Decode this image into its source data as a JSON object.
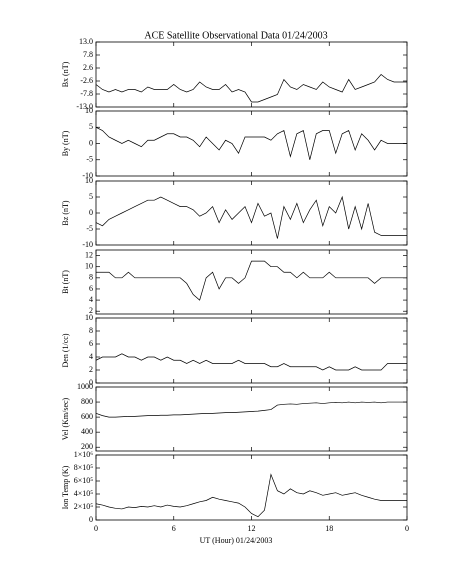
{
  "chart_data": [
    {
      "type": "line",
      "title": "ACE Satellite Observational Data   01/24/2003",
      "ylabel": "Bx (nT)",
      "color": "#000000",
      "x": [
        0,
        0.5,
        1,
        1.5,
        2,
        2.5,
        3,
        3.5,
        4,
        4.5,
        5,
        5.5,
        6,
        6.5,
        7,
        7.5,
        8,
        8.5,
        9,
        9.5,
        10,
        10.5,
        11,
        11.5,
        12,
        12.5,
        13,
        13.5,
        14,
        14.5,
        15,
        15.5,
        16,
        16.5,
        17,
        17.5,
        18,
        18.5,
        19,
        19.5,
        20,
        20.5,
        21,
        21.5,
        22,
        22.5,
        23,
        23.5,
        24
      ],
      "values": [
        -4,
        -6,
        -7,
        -6,
        -7,
        -6,
        -6,
        -7,
        -5,
        -6,
        -6,
        -6,
        -4,
        -6,
        -7,
        -6,
        -3,
        -5,
        -6,
        -6,
        -4,
        -7,
        -6,
        -7,
        -11,
        -11,
        -10,
        -9,
        -8,
        -2,
        -5,
        -6,
        -4,
        -5,
        -6,
        -3,
        -5,
        -6,
        -7,
        -2,
        -6,
        -5,
        -4,
        -3,
        0,
        -2,
        -3,
        -3,
        -3
      ],
      "ylim": [
        -13,
        13
      ],
      "yticks": [
        {
          "value": 13,
          "label": "13.0"
        },
        7.8,
        2.6,
        -2.6,
        -7.8,
        {
          "value": -13,
          "label": "-13.0"
        }
      ]
    },
    {
      "type": "line",
      "ylabel": "By (nT)",
      "color": "#000000",
      "x": [
        0,
        0.5,
        1,
        1.5,
        2,
        2.5,
        3,
        3.5,
        4,
        4.5,
        5,
        5.5,
        6,
        6.5,
        7,
        7.5,
        8,
        8.5,
        9,
        9.5,
        10,
        10.5,
        11,
        11.5,
        12,
        12.5,
        13,
        13.5,
        14,
        14.5,
        15,
        15.5,
        16,
        16.5,
        17,
        17.5,
        18,
        18.5,
        19,
        19.5,
        20,
        20.5,
        21,
        21.5,
        22,
        22.5,
        23,
        23.5,
        24
      ],
      "values": [
        5,
        4,
        2,
        1,
        0,
        1,
        0,
        -1,
        1,
        1,
        2,
        3,
        3,
        2,
        2,
        1,
        -1,
        2,
        0,
        -2,
        1,
        0,
        -3,
        2,
        2,
        2,
        2,
        1,
        3,
        4,
        -4,
        3,
        4,
        -5,
        3,
        4,
        4,
        -3,
        3,
        4,
        -2,
        3,
        1,
        -2,
        1,
        0,
        0,
        0,
        0
      ],
      "ylim": [
        -10,
        10
      ],
      "yticks": [
        10,
        5,
        0,
        -5,
        -10
      ]
    },
    {
      "type": "line",
      "ylabel": "Bz (nT)",
      "color": "#000000",
      "x": [
        0,
        0.5,
        1,
        1.5,
        2,
        2.5,
        3,
        3.5,
        4,
        4.5,
        5,
        5.5,
        6,
        6.5,
        7,
        7.5,
        8,
        8.5,
        9,
        9.5,
        10,
        10.5,
        11,
        11.5,
        12,
        12.5,
        13,
        13.5,
        14,
        14.5,
        15,
        15.5,
        16,
        16.5,
        17,
        17.5,
        18,
        18.5,
        19,
        19.5,
        20,
        20.5,
        21,
        21.5,
        22,
        22.5,
        23,
        23.5,
        24
      ],
      "values": [
        -3,
        -4,
        -2,
        -1,
        0,
        1,
        2,
        3,
        4,
        4,
        5,
        4,
        3,
        2,
        2,
        1,
        -1,
        0,
        2,
        -3,
        1,
        -2,
        0,
        2,
        -3,
        3,
        -1,
        0,
        -8,
        2,
        -2,
        3,
        -3,
        1,
        4,
        -4,
        2,
        0,
        5,
        -5,
        2,
        -5,
        3,
        -6,
        -7,
        -7,
        -7,
        -7,
        -7
      ],
      "ylim": [
        -10,
        10
      ],
      "yticks": [
        10,
        5,
        0,
        -5,
        -10
      ]
    },
    {
      "type": "line",
      "ylabel": "Bt (nT)",
      "color": "#000000",
      "x": [
        0,
        0.5,
        1,
        1.5,
        2,
        2.5,
        3,
        3.5,
        4,
        4.5,
        5,
        5.5,
        6,
        6.5,
        7,
        7.5,
        8,
        8.5,
        9,
        9.5,
        10,
        10.5,
        11,
        11.5,
        12,
        12.5,
        13,
        13.5,
        14,
        14.5,
        15,
        15.5,
        16,
        16.5,
        17,
        17.5,
        18,
        18.5,
        19,
        19.5,
        20,
        20.5,
        21,
        21.5,
        22,
        22.5,
        23,
        23.5,
        24
      ],
      "values": [
        9,
        9,
        9,
        8,
        8,
        9,
        8,
        8,
        8,
        8,
        8,
        8,
        8,
        8,
        7,
        5,
        4,
        8,
        9,
        6,
        8,
        8,
        7,
        8,
        11,
        11,
        11,
        10,
        10,
        9,
        9,
        8,
        9,
        8,
        8,
        8,
        9,
        8,
        8,
        8,
        8,
        8,
        8,
        7,
        8,
        8,
        8,
        8,
        8
      ],
      "ylim": [
        1.5,
        13
      ],
      "yticks": [
        12,
        10,
        8,
        6,
        4,
        2
      ]
    },
    {
      "type": "line",
      "ylabel": "Den (1/cc)",
      "color": "#000000",
      "x": [
        0,
        0.5,
        1,
        1.5,
        2,
        2.5,
        3,
        3.5,
        4,
        4.5,
        5,
        5.5,
        6,
        6.5,
        7,
        7.5,
        8,
        8.5,
        9,
        9.5,
        10,
        10.5,
        11,
        11.5,
        12,
        12.5,
        13,
        13.5,
        14,
        14.5,
        15,
        15.5,
        16,
        16.5,
        17,
        17.5,
        18,
        18.5,
        19,
        19.5,
        20,
        20.5,
        21,
        21.5,
        22,
        22.5,
        23,
        23.5,
        24
      ],
      "values": [
        3.5,
        4,
        4,
        4,
        4.5,
        4,
        4,
        3.5,
        4,
        4,
        3.5,
        4,
        3.5,
        3.5,
        3,
        3.5,
        3,
        3.5,
        3,
        3,
        3,
        3,
        3.5,
        3,
        3,
        3,
        3,
        2.5,
        2.5,
        3,
        2.5,
        2.5,
        2.5,
        2.5,
        2.5,
        2,
        2.5,
        2,
        2,
        2,
        2.5,
        2,
        2,
        2,
        2,
        3,
        3,
        3,
        3
      ],
      "ylim": [
        0,
        10
      ],
      "yticks": [
        10,
        8,
        6,
        4,
        2,
        0
      ]
    },
    {
      "type": "line",
      "ylabel": "Vel (Km/sec)",
      "color": "#000000",
      "x": [
        0,
        0.5,
        1,
        1.5,
        2,
        2.5,
        3,
        3.5,
        4,
        4.5,
        5,
        5.5,
        6,
        6.5,
        7,
        7.5,
        8,
        8.5,
        9,
        9.5,
        10,
        10.5,
        11,
        11.5,
        12,
        12.5,
        13,
        13.5,
        14,
        14.5,
        15,
        15.5,
        16,
        16.5,
        17,
        17.5,
        18,
        18.5,
        19,
        19.5,
        20,
        20.5,
        21,
        21.5,
        22,
        22.5,
        23,
        23.5,
        24
      ],
      "values": [
        650,
        620,
        600,
        600,
        605,
        610,
        610,
        615,
        620,
        620,
        625,
        625,
        630,
        630,
        635,
        640,
        645,
        650,
        650,
        655,
        660,
        660,
        665,
        670,
        675,
        680,
        690,
        700,
        760,
        770,
        775,
        770,
        780,
        785,
        790,
        780,
        790,
        795,
        790,
        800,
        790,
        800,
        795,
        800,
        790,
        800,
        800,
        800,
        800
      ],
      "ylim": [
        150,
        1000
      ],
      "yticks": [
        1000,
        800,
        600,
        400,
        200
      ]
    },
    {
      "type": "line",
      "ylabel": "Ion Temp (K)",
      "xlabel": "UT (Hour)  01/24/2003",
      "color": "#000000",
      "x": [
        0,
        0.5,
        1,
        1.5,
        2,
        2.5,
        3,
        3.5,
        4,
        4.5,
        5,
        5.5,
        6,
        6.5,
        7,
        7.5,
        8,
        8.5,
        9,
        9.5,
        10,
        10.5,
        11,
        11.5,
        12,
        12.5,
        13,
        13.5,
        14,
        14.5,
        15,
        15.5,
        16,
        16.5,
        17,
        17.5,
        18,
        18.5,
        19,
        19.5,
        20,
        20.5,
        21,
        21.5,
        22,
        22.5,
        23,
        23.5,
        24
      ],
      "values": [
        250000,
        230000,
        200000,
        180000,
        170000,
        200000,
        190000,
        210000,
        200000,
        220000,
        200000,
        230000,
        210000,
        200000,
        220000,
        250000,
        280000,
        300000,
        350000,
        320000,
        300000,
        280000,
        260000,
        200000,
        100000,
        50000,
        150000,
        700000,
        450000,
        400000,
        480000,
        420000,
        400000,
        450000,
        420000,
        380000,
        400000,
        420000,
        380000,
        400000,
        420000,
        380000,
        350000,
        320000,
        300000,
        300000,
        300000,
        300000,
        300000
      ],
      "ylim": [
        0,
        1000000
      ],
      "yticks": [
        {
          "value": 1000000,
          "label": "1×10⁶"
        },
        {
          "value": 800000,
          "label": "8×10⁵"
        },
        {
          "value": 600000,
          "label": "6×10⁵"
        },
        {
          "value": 400000,
          "label": "4×10⁵"
        },
        {
          "value": 200000,
          "label": "2×10⁵"
        },
        0
      ],
      "xlim": [
        0,
        24
      ],
      "xticks": [
        0,
        6,
        12,
        18,
        {
          "value": 24,
          "label": "0"
        }
      ]
    }
  ]
}
